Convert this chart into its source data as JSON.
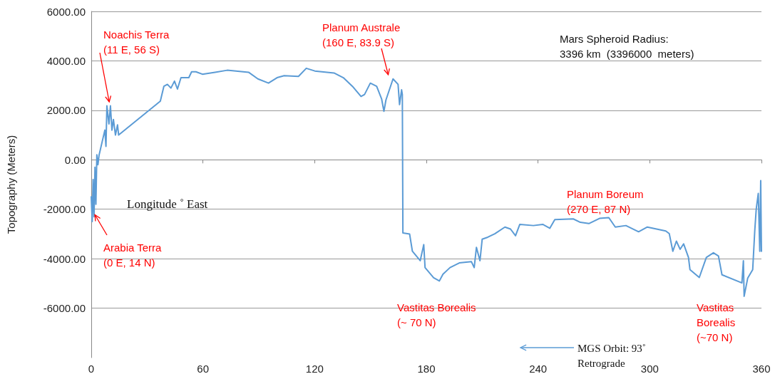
{
  "chart_data": {
    "type": "line",
    "ylabel": "Topography (Meters)",
    "xlabel": "Longitude ˚ East",
    "xlim": [
      0,
      360
    ],
    "xticks": [
      0,
      60,
      120,
      180,
      240,
      300,
      360
    ],
    "ylim": [
      -8000,
      6000
    ],
    "yticks": [
      {
        "value": -6000,
        "label": "-6000.00"
      },
      {
        "value": -4000,
        "label": "-4000.00"
      },
      {
        "value": -2000,
        "label": "-2000.00"
      },
      {
        "value": 0,
        "label": "0.00"
      },
      {
        "value": 2000,
        "label": "2000.00"
      },
      {
        "value": 4000,
        "label": "4000.00"
      },
      {
        "value": 6000,
        "label": "6000.00"
      }
    ],
    "grid": "y",
    "marker": "none",
    "line_style": "solid",
    "series": [
      {
        "color": "#5b9bd5",
        "x": [
          0,
          0.5,
          1,
          1.5,
          2,
          2.5,
          3,
          3.6,
          4.2,
          7.3,
          7.9,
          8.4,
          9.5,
          10.3,
          11.1,
          11.9,
          13,
          14.1,
          14.7,
          37.1,
          39,
          40.9,
          42.8,
          44.7,
          46.3,
          48.2,
          52.4,
          53.9,
          56.2,
          59.7,
          66.5,
          73,
          84.5,
          89.5,
          95.2,
          99.8,
          103.6,
          111.3,
          115.5,
          120.1,
          130.4,
          135.4,
          140.3,
          144.9,
          146.8,
          149.9,
          153.3,
          156,
          157.2,
          158.3,
          162.1,
          164.8,
          165.6,
          166.7,
          167.1,
          167.4,
          171,
          172.5,
          176.7,
          178.6,
          179.3,
          183.9,
          187,
          188.9,
          192.7,
          197.7,
          204.2,
          205.7,
          206.9,
          208.8,
          210,
          213,
          216.8,
          222.2,
          225.2,
          227.9,
          230.2,
          237.5,
          242.5,
          246.3,
          249,
          258.9,
          262.7,
          267.3,
          273,
          278,
          281.5,
          287.2,
          294,
          298.7,
          308.6,
          310.5,
          312.4,
          314.3,
          316.3,
          318.2,
          320.8,
          321.6,
          326.6,
          330.4,
          334.2,
          336.9,
          338.8,
          349.5,
          350.3,
          350.7,
          352.6,
          355.3,
          356.4,
          357.2,
          358.3,
          359.1,
          359.6,
          360
        ],
        "values": [
          -1500,
          -2500,
          -800,
          -2300,
          -300,
          -1800,
          200,
          -200,
          190,
          1200,
          540,
          2180,
          1450,
          2180,
          1200,
          1630,
          1000,
          1410,
          1000,
          2370,
          2970,
          3050,
          2900,
          3180,
          2860,
          3320,
          3320,
          3560,
          3560,
          3460,
          3540,
          3620,
          3540,
          3270,
          3100,
          3320,
          3400,
          3370,
          3700,
          3590,
          3510,
          3320,
          2970,
          2560,
          2640,
          3100,
          2970,
          2450,
          1960,
          2420,
          3270,
          3050,
          2230,
          2830,
          2640,
          -2960,
          -3000,
          -3700,
          -4080,
          -3430,
          -4360,
          -4770,
          -4900,
          -4630,
          -4360,
          -4170,
          -4120,
          -4360,
          -3540,
          -4080,
          -3210,
          -3130,
          -2990,
          -2720,
          -2800,
          -3070,
          -2610,
          -2660,
          -2610,
          -2770,
          -2420,
          -2390,
          -2530,
          -2580,
          -2370,
          -2340,
          -2720,
          -2660,
          -2910,
          -2720,
          -2880,
          -2990,
          -3700,
          -3290,
          -3620,
          -3400,
          -3950,
          -4440,
          -4760,
          -3950,
          -3760,
          -3890,
          -4650,
          -4980,
          -4080,
          -5520,
          -4790,
          -4440,
          -2880,
          -1990,
          -1360,
          -3700,
          -840,
          -3700
        ]
      }
    ],
    "annotations": [
      {
        "text": "Noachis Terra\n(11 E, 56 S)",
        "x": 10,
        "y": 2200
      },
      {
        "text": "Planum Australe\n(160 E, 83.9 S)",
        "x": 160,
        "y": 3300
      },
      {
        "text": "Arabia Terra\n(0 E, 14 N)",
        "x": 1,
        "y": -2100
      },
      "Planum Boreum\n(270 E, 87 N)",
      "Vastitas Borealis\n(~ 70 N)",
      "Vastitas\nBorealis\n(~70 N)",
      "Mars Spheroid Radius:\n3396 km  (3396000  meters)",
      "MGS Orbit: 93˚\nRetrograde"
    ]
  }
}
